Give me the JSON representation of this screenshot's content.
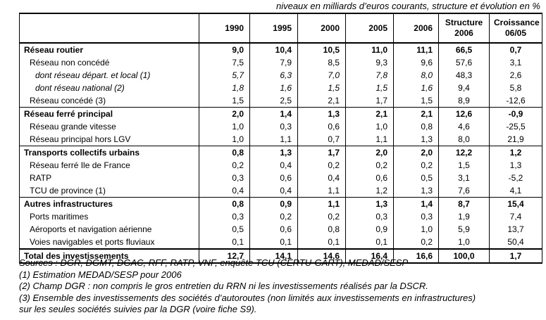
{
  "caption": "niveaux en milliards d’euros courants, structure et évolution en %",
  "headers": {
    "label": "",
    "years": [
      "1990",
      "1995",
      "2000",
      "2005",
      "2006"
    ],
    "structure": [
      "Structure",
      "2006"
    ],
    "croissance": [
      "Croissance",
      "06/05"
    ]
  },
  "rows": [
    {
      "type": "cat",
      "label": "Réseau routier",
      "values": [
        "9,0",
        "10,4",
        "10,5",
        "11,0",
        "11,1"
      ],
      "structure": "66,5",
      "croissance": "0,7"
    },
    {
      "type": "sub",
      "label": "Réseau non concédé",
      "values": [
        "7,5",
        "7,9",
        "8,5",
        "9,3",
        "9,6"
      ],
      "structure": "57,6",
      "croissance": "3,1"
    },
    {
      "type": "it",
      "label": "dont réseau départ. et local (1)",
      "values": [
        "5,7",
        "6,3",
        "7,0",
        "7,8",
        "8,0"
      ],
      "structure": "48,3",
      "croissance": "2,6"
    },
    {
      "type": "it",
      "label": "dont réseau national (2)",
      "values": [
        "1,8",
        "1,6",
        "1,5",
        "1,5",
        "1,6"
      ],
      "structure": "9,4",
      "croissance": "5,8"
    },
    {
      "type": "sub",
      "label": "Réseau concédé (3)",
      "values": [
        "1,5",
        "2,5",
        "2,1",
        "1,7",
        "1,5"
      ],
      "structure": "8,9",
      "croissance": "-12,6"
    },
    {
      "type": "cat",
      "label": "Réseau ferré principal",
      "values": [
        "2,0",
        "1,4",
        "1,3",
        "2,1",
        "2,1"
      ],
      "structure": "12,6",
      "croissance": "-0,9"
    },
    {
      "type": "sub",
      "label": "Réseau grande vitesse",
      "values": [
        "1,0",
        "0,3",
        "0,6",
        "1,0",
        "0,8"
      ],
      "structure": "4,6",
      "croissance": "-25,5"
    },
    {
      "type": "sub",
      "label": "Réseau principal hors LGV",
      "values": [
        "1,0",
        "1,1",
        "0,7",
        "1,1",
        "1,3"
      ],
      "structure": "8,0",
      "croissance": "21,9"
    },
    {
      "type": "cat",
      "label": "Transports collectifs urbains",
      "values": [
        "0,8",
        "1,3",
        "1,7",
        "2,0",
        "2,0"
      ],
      "structure": "12,2",
      "croissance": "1,2"
    },
    {
      "type": "sub",
      "label": "Réseau ferré Ile de France",
      "values": [
        "0,2",
        "0,4",
        "0,2",
        "0,2",
        "0,2"
      ],
      "structure": "1,5",
      "croissance": "1,3"
    },
    {
      "type": "sub",
      "label": "RATP",
      "values": [
        "0,3",
        "0,6",
        "0,4",
        "0,6",
        "0,5"
      ],
      "structure": "3,1",
      "croissance": "-5,2"
    },
    {
      "type": "sub",
      "label": "TCU de province (1)",
      "values": [
        "0,4",
        "0,4",
        "1,1",
        "1,2",
        "1,3"
      ],
      "structure": "7,6",
      "croissance": "4,1"
    },
    {
      "type": "cat",
      "label": "Autres infrastructures",
      "values": [
        "0,8",
        "0,9",
        "1,1",
        "1,3",
        "1,4"
      ],
      "structure": "8,7",
      "croissance": "15,4"
    },
    {
      "type": "sub",
      "label": "Ports maritimes",
      "values": [
        "0,3",
        "0,2",
        "0,2",
        "0,3",
        "0,3"
      ],
      "structure": "1,9",
      "croissance": "7,4"
    },
    {
      "type": "sub",
      "label": "Aéroports et navigation aérienne",
      "values": [
        "0,5",
        "0,6",
        "0,8",
        "0,9",
        "1,0"
      ],
      "structure": "5,9",
      "croissance": "13,7"
    },
    {
      "type": "sub",
      "label": "Voies navigables et ports fluviaux",
      "values": [
        "0,1",
        "0,1",
        "0,1",
        "0,1",
        "0,2"
      ],
      "structure": "1,0",
      "croissance": "50,4"
    },
    {
      "type": "total",
      "label": "Total des investissements",
      "values": [
        "12,7",
        "14,1",
        "14,6",
        "16,4",
        "16,6"
      ],
      "structure": "100,0",
      "croissance": "1,7"
    }
  ],
  "notes": [
    "Sources : DGR, DGMT, DGAC, RFF, RATP, VNF, enquête TCU (CERTU-GART), MEDAD/SESP",
    "(1) Estimation MEDAD/SESP pour 2006",
    "(2) Champ DGR : non compris le gros entretien du RRN ni les investissements réalisés par la DSCR.",
    "(3) Ensemble des investissements des sociétés d’autoroutes (non limités aux investissements en infrastructures)",
    "sur les seules sociétés suivies par la DGR (voire fiche S9)."
  ]
}
